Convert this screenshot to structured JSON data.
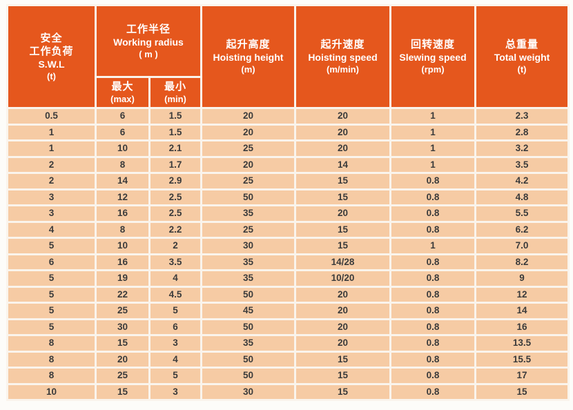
{
  "colors": {
    "header_bg": "#e5571d",
    "row_bg": "#f6cba4",
    "separator": "#faf4ec",
    "header_text": "#ffffff",
    "body_text": "#3b3b3b"
  },
  "header": {
    "swl": {
      "zh1": "安全",
      "zh2": "工作负荷",
      "en": "S.W.L",
      "unit": "(t)"
    },
    "working_radius": {
      "zh": "工作半径",
      "en": "Working radius",
      "unit": "( m )",
      "max": {
        "zh": "最大",
        "en": "(max)"
      },
      "min": {
        "zh": "最小",
        "en": "(min)"
      }
    },
    "hoisting_height": {
      "zh": "起升高度",
      "en": "Hoisting height",
      "unit": "(m)"
    },
    "hoisting_speed": {
      "zh": "起升速度",
      "en": "Hoisting speed",
      "unit": "(m/min)"
    },
    "slewing_speed": {
      "zh": "回转速度",
      "en": "Slewing speed",
      "unit": "(rpm)"
    },
    "total_weight": {
      "zh": "总重量",
      "en": "Total weight",
      "unit": "(t)"
    }
  },
  "rows": [
    [
      "0.5",
      "6",
      "1.5",
      "20",
      "20",
      "1",
      "2.3"
    ],
    [
      "1",
      "6",
      "1.5",
      "20",
      "20",
      "1",
      "2.8"
    ],
    [
      "1",
      "10",
      "2.1",
      "25",
      "20",
      "1",
      "3.2"
    ],
    [
      "2",
      "8",
      "1.7",
      "20",
      "14",
      "1",
      "3.5"
    ],
    [
      "2",
      "14",
      "2.9",
      "25",
      "15",
      "0.8",
      "4.2"
    ],
    [
      "3",
      "12",
      "2.5",
      "50",
      "15",
      "0.8",
      "4.8"
    ],
    [
      "3",
      "16",
      "2.5",
      "35",
      "20",
      "0.8",
      "5.5"
    ],
    [
      "4",
      "8",
      "2.2",
      "25",
      "15",
      "0.8",
      "6.2"
    ],
    [
      "5",
      "10",
      "2",
      "30",
      "15",
      "1",
      "7.0"
    ],
    [
      "6",
      "16",
      "3.5",
      "35",
      "14/28",
      "0.8",
      "8.2"
    ],
    [
      "5",
      "19",
      "4",
      "35",
      "10/20",
      "0.8",
      "9"
    ],
    [
      "5",
      "22",
      "4.5",
      "50",
      "20",
      "0.8",
      "12"
    ],
    [
      "5",
      "25",
      "5",
      "45",
      "20",
      "0.8",
      "14"
    ],
    [
      "5",
      "30",
      "6",
      "50",
      "20",
      "0.8",
      "16"
    ],
    [
      "8",
      "15",
      "3",
      "35",
      "20",
      "0.8",
      "13.5"
    ],
    [
      "8",
      "20",
      "4",
      "50",
      "15",
      "0.8",
      "15.5"
    ],
    [
      "8",
      "25",
      "5",
      "50",
      "15",
      "0.8",
      "17"
    ],
    [
      "10",
      "15",
      "3",
      "30",
      "15",
      "0.8",
      "15"
    ]
  ]
}
